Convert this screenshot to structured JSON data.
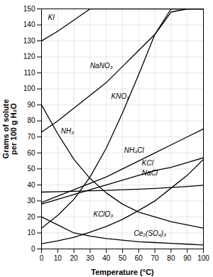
{
  "chart_data": {
    "type": "line",
    "xlabel": "Temperature (°C)",
    "ylabel": "Grams of solute\nper 100 g H₂O",
    "xlim": [
      0,
      100
    ],
    "ylim": [
      0,
      150
    ],
    "xticks": [
      0,
      10,
      20,
      30,
      40,
      50,
      60,
      70,
      80,
      90,
      100
    ],
    "yticks": [
      0,
      10,
      20,
      30,
      40,
      50,
      60,
      70,
      80,
      90,
      100,
      110,
      120,
      130,
      140,
      150
    ],
    "grid": true,
    "color": "black",
    "x": [
      0,
      10,
      20,
      30,
      40,
      50,
      60,
      70,
      80,
      90,
      100
    ],
    "series": [
      {
        "name": "KI",
        "values": [
          130,
          136,
          143,
          150,
          150,
          150,
          150,
          150,
          150,
          150,
          150
        ]
      },
      {
        "name": "NaNO₃",
        "values": [
          73,
          80,
          88,
          96,
          104,
          114,
          124,
          134,
          148,
          150,
          150
        ]
      },
      {
        "name": "KNO₃",
        "values": [
          13,
          21,
          31,
          45,
          63,
          85,
          109,
          134,
          150,
          150,
          150
        ]
      },
      {
        "name": "NH₃",
        "values": [
          90,
          72,
          56,
          44,
          35,
          28,
          23,
          20,
          17,
          15,
          13
        ]
      },
      {
        "name": "NH₄Cl",
        "values": [
          29,
          33,
          37,
          41,
          45,
          50,
          55,
          60,
          65,
          70,
          75
        ]
      },
      {
        "name": "KCl",
        "values": [
          28,
          31,
          34,
          37,
          40,
          43,
          46,
          49,
          51,
          54,
          57
        ]
      },
      {
        "name": "NaCl",
        "values": [
          35.5,
          35.8,
          36,
          36.3,
          36.6,
          37,
          37.3,
          37.8,
          38.4,
          39,
          39.8
        ]
      },
      {
        "name": "KClO₃",
        "values": [
          3.3,
          5,
          7.3,
          10.5,
          14,
          18.5,
          24,
          30,
          38,
          46,
          56
        ]
      },
      {
        "name": "Ce₂(SO₄)₃",
        "values": [
          20,
          15,
          10,
          8,
          6.5,
          5.5,
          4.5,
          4,
          3.5,
          3,
          2.5
        ]
      }
    ],
    "annotations": [
      {
        "text": "KI",
        "x": 4,
        "y": 143
      },
      {
        "text": "NaNO₃",
        "x": 30,
        "y": 113
      },
      {
        "text": "KNO₃",
        "x": 43,
        "y": 94
      },
      {
        "text": "NH₃",
        "x": 12,
        "y": 72
      },
      {
        "text": "NH₄Cl",
        "x": 51,
        "y": 60
      },
      {
        "text": "KCl",
        "x": 62,
        "y": 52
      },
      {
        "text": "NaCl",
        "x": 62,
        "y": 46
      },
      {
        "text": "KClO₃",
        "x": 32,
        "y": 20
      },
      {
        "text": "Ce₂(SO₄)₃",
        "x": 57,
        "y": 8
      }
    ]
  }
}
